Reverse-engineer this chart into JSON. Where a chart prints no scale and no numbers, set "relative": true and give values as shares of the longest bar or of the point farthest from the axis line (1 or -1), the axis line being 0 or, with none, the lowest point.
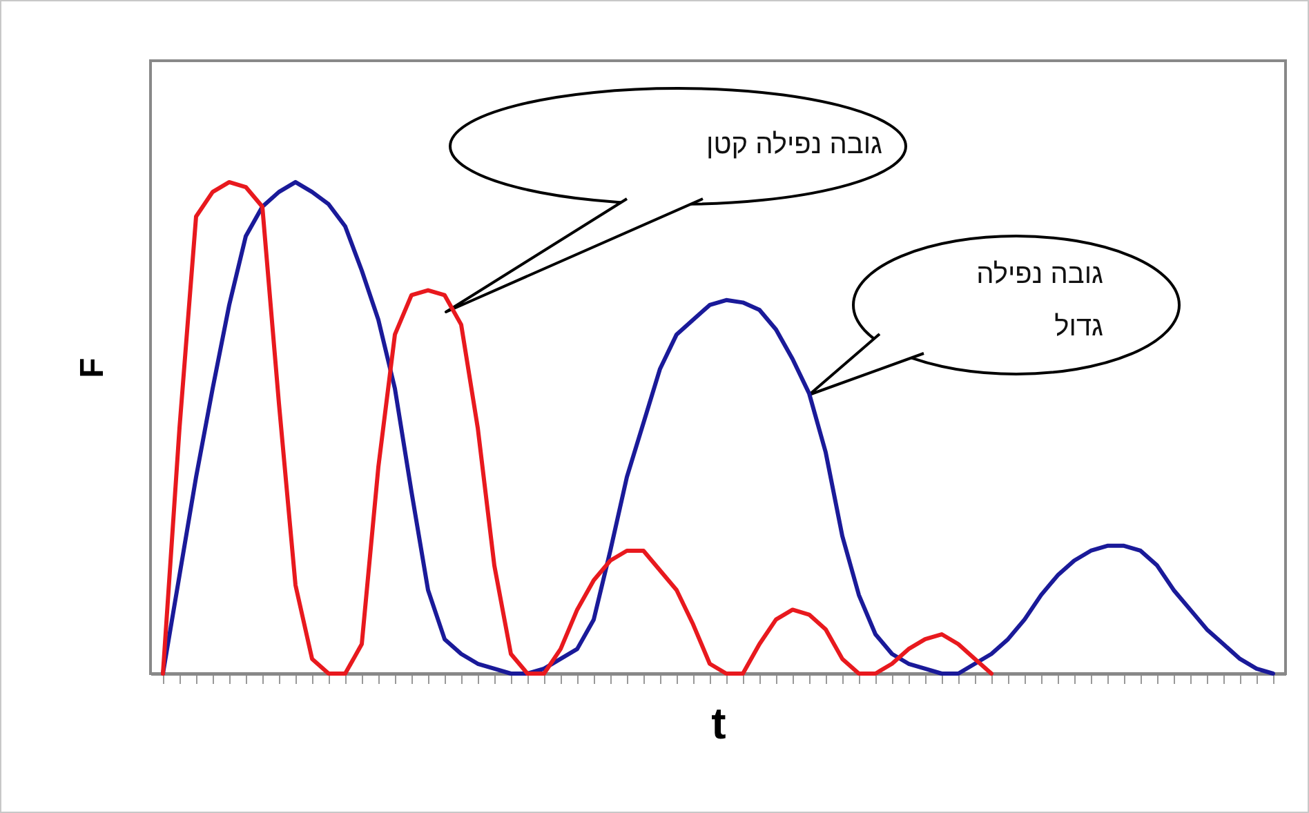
{
  "chart_data": {
    "type": "line",
    "relative": true,
    "xlabel": "t",
    "ylabel": "F",
    "tick_labels": false,
    "categories": [
      null,
      null,
      null,
      null,
      null,
      null,
      null,
      null,
      null,
      null,
      null,
      null,
      null,
      null,
      null,
      null,
      null,
      null,
      null,
      null,
      null,
      null,
      null,
      null,
      null,
      null,
      null,
      null,
      null,
      null,
      null,
      null,
      null,
      null,
      null,
      null,
      null,
      null,
      null,
      null,
      null,
      null,
      null,
      null,
      null,
      null,
      null,
      null,
      null,
      null,
      null,
      null,
      null,
      null,
      null,
      null,
      null,
      null,
      null,
      null,
      null,
      null,
      null,
      null,
      null,
      null,
      null,
      null
    ],
    "series": [
      {
        "color": "#1a1a99",
        "values": [
          0,
          0.2,
          0.4,
          0.58,
          0.75,
          0.89,
          0.95,
          0.98,
          1.0,
          0.98,
          0.955,
          0.91,
          0.82,
          0.72,
          0.58,
          0.37,
          0.17,
          0.07,
          0.04,
          0.02,
          0.01,
          0,
          0,
          0.01,
          0.03,
          0.05,
          0.11,
          0.25,
          0.4,
          0.51,
          0.62,
          0.69,
          0.72,
          0.75,
          0.76,
          0.755,
          0.74,
          0.7,
          0.64,
          0.57,
          0.45,
          0.28,
          0.16,
          0.08,
          0.04,
          0.02,
          0.01,
          0,
          0,
          0.02,
          0.04,
          0.07,
          0.11,
          0.16,
          0.2,
          0.23,
          0.25,
          0.26,
          0.26,
          0.25,
          0.22,
          0.17,
          0.13,
          0.09,
          0.06,
          0.03,
          0.01,
          0
        ]
      },
      {
        "color": "#e8191e",
        "values": [
          0,
          0.5,
          0.93,
          0.98,
          1.0,
          0.99,
          0.95,
          0.55,
          0.18,
          0.03,
          0,
          0,
          0.06,
          0.42,
          0.69,
          0.77,
          0.78,
          0.77,
          0.71,
          0.5,
          0.22,
          0.04,
          0,
          0,
          0.05,
          0.13,
          0.19,
          0.23,
          0.25,
          0.25,
          0.21,
          0.17,
          0.1,
          0.02,
          0,
          0,
          0.06,
          0.11,
          0.13,
          0.12,
          0.09,
          0.03,
          0,
          0,
          0.02,
          0.05,
          0.07,
          0.08,
          0.06,
          0.03,
          0,
          null,
          null,
          null,
          null,
          null,
          null,
          null,
          null,
          null,
          null,
          null,
          null,
          null,
          null,
          null,
          null,
          null
        ]
      }
    ],
    "annotations": [
      "גובה נפילה קטן",
      "גובה נפילה גדול"
    ]
  }
}
